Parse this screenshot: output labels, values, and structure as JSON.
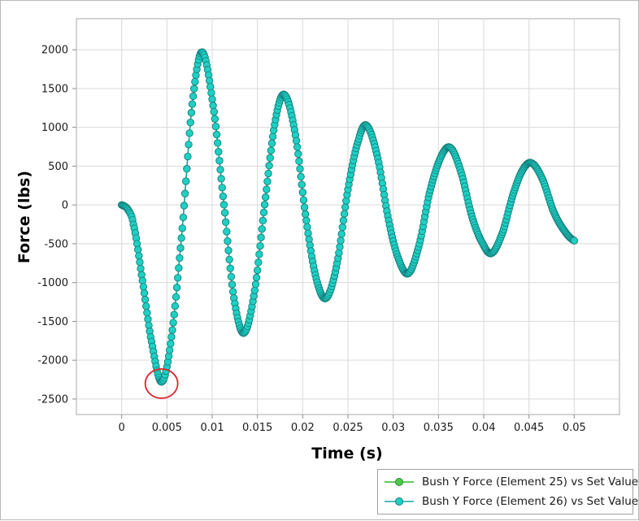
{
  "chart_data": {
    "type": "line",
    "title": "",
    "xlabel": "Time (s)",
    "ylabel": "Force (lbs)",
    "xlim": [
      -0.005,
      0.055
    ],
    "ylim": [
      -2700,
      2400
    ],
    "grid": true,
    "x_ticks": [
      0,
      0.005,
      0.01,
      0.015,
      0.02,
      0.025,
      0.03,
      0.035,
      0.04,
      0.045,
      0.05
    ],
    "x_tick_labels": [
      "0",
      "0.005",
      "0.01",
      "0.015",
      "0.02",
      "0.025",
      "0.03",
      "0.035",
      "0.04",
      "0.045",
      "0.05"
    ],
    "y_ticks": [
      -2500,
      -2000,
      -1500,
      -1000,
      -500,
      0,
      500,
      1000,
      1500,
      2000
    ],
    "y_tick_labels": [
      "-2500",
      "-2000",
      "-1500",
      "-1000",
      "-500",
      "0",
      "500",
      "1000",
      "1500",
      "2000"
    ],
    "key_points": [
      [
        0,
        0
      ],
      [
        0.0007,
        -60
      ],
      [
        0.0013,
        -250
      ],
      [
        0.0022,
        -900
      ],
      [
        0.0032,
        -1700
      ],
      [
        0.0044,
        -2280
      ],
      [
        0.0055,
        -1700
      ],
      [
        0.0067,
        -300
      ],
      [
        0.0078,
        1300
      ],
      [
        0.0089,
        1970
      ],
      [
        0.0102,
        1200
      ],
      [
        0.0114,
        -100
      ],
      [
        0.0124,
        -1200
      ],
      [
        0.0135,
        -1650
      ],
      [
        0.0147,
        -1100
      ],
      [
        0.0159,
        100
      ],
      [
        0.017,
        1100
      ],
      [
        0.018,
        1420
      ],
      [
        0.0192,
        900
      ],
      [
        0.0204,
        -200
      ],
      [
        0.0215,
        -950
      ],
      [
        0.0226,
        -1200
      ],
      [
        0.0238,
        -750
      ],
      [
        0.025,
        200
      ],
      [
        0.0262,
        850
      ],
      [
        0.0271,
        1020
      ],
      [
        0.0283,
        600
      ],
      [
        0.0295,
        -200
      ],
      [
        0.0306,
        -700
      ],
      [
        0.0317,
        -880
      ],
      [
        0.0329,
        -500
      ],
      [
        0.034,
        150
      ],
      [
        0.0352,
        600
      ],
      [
        0.0363,
        740
      ],
      [
        0.0375,
        420
      ],
      [
        0.0387,
        -150
      ],
      [
        0.0399,
        -500
      ],
      [
        0.0409,
        -620
      ],
      [
        0.0421,
        -350
      ],
      [
        0.0432,
        120
      ],
      [
        0.0443,
        450
      ],
      [
        0.0453,
        540
      ],
      [
        0.0465,
        330
      ],
      [
        0.0477,
        -80
      ],
      [
        0.0489,
        -330
      ],
      [
        0.05,
        -460
      ]
    ],
    "series": [
      {
        "name": "Bush Y Force (Element 25) vs Set Value",
        "color": "#2fb52f",
        "marker_fill": "#4cc94c",
        "marker_edge": "#2a8a2a"
      },
      {
        "name": "Bush Y Force (Element 26) vs Set Value",
        "color": "#13a8a8",
        "marker_fill": "#1fd0c4",
        "marker_edge": "#127a7a"
      }
    ],
    "annotations": [
      {
        "type": "circle",
        "x": 0.0044,
        "y": -2280,
        "color": "#e0202a"
      }
    ],
    "legend_position": "bottom-right"
  }
}
